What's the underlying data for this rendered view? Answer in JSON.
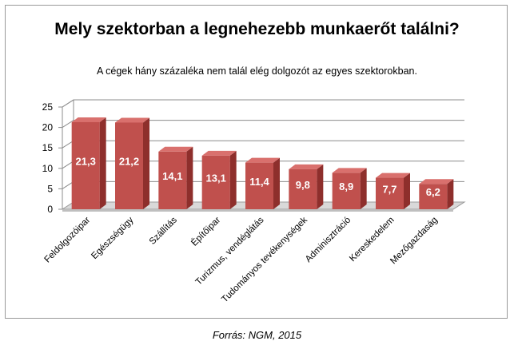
{
  "chart_data": {
    "type": "bar",
    "title": "Mely szektorban a legnehezebb munkaerőt találni?",
    "subtitle": "A cégek hány százaléka nem talál elég dolgozót az egyes szektorokban.",
    "categories": [
      "Feldolgozóipar",
      "Egészségügy",
      "Szállítás",
      "Építőipar",
      "Turizmus, vendéglátás",
      "Tudományos tevékenységek",
      "Adminisztráció",
      "Kereskedelem",
      "Mezőgazdaság"
    ],
    "values": [
      21.3,
      21.2,
      14.1,
      13.1,
      11.4,
      9.8,
      8.9,
      7.7,
      6.2
    ],
    "data_labels": [
      "21,3",
      "21,2",
      "14,1",
      "13,1",
      "11,4",
      "9,8",
      "8,9",
      "7,7",
      "6,2"
    ],
    "yticks": [
      0,
      5,
      10,
      15,
      20,
      25
    ],
    "ylim": [
      0,
      25
    ],
    "xlabel": "",
    "ylabel": "",
    "grid": true,
    "bar_color": "#c0504d",
    "source": "Forrás: NGM, 2015"
  }
}
